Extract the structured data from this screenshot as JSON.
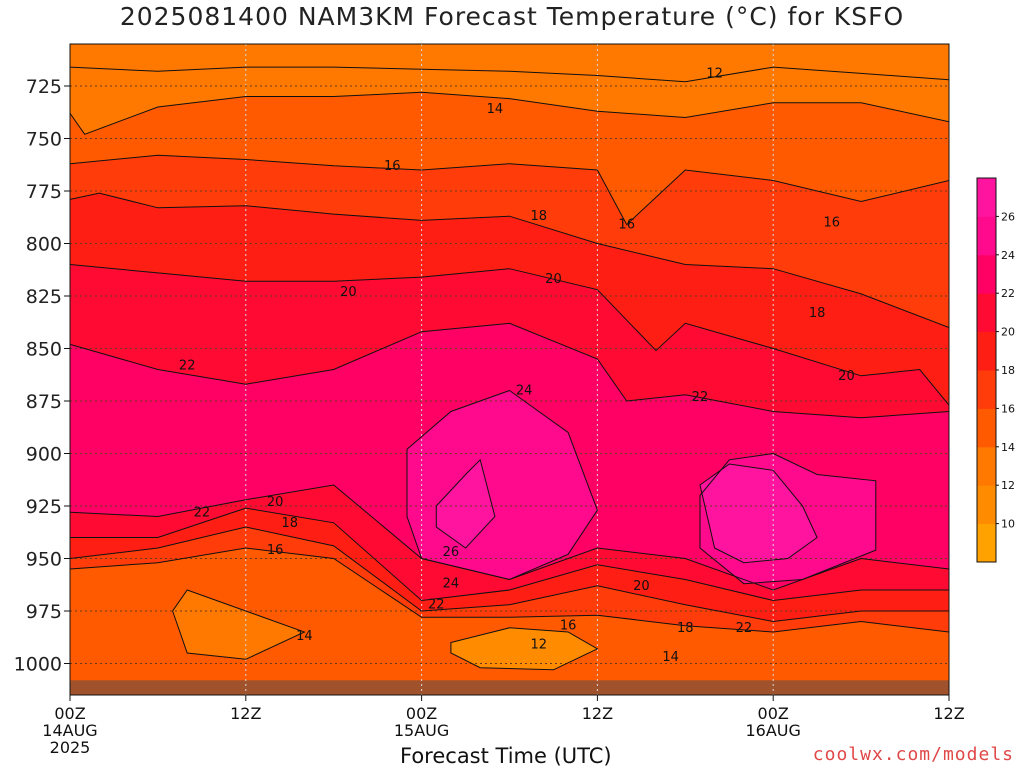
{
  "title": "2025081400 NAM3KM Forecast Temperature (°C) for KSFO",
  "footer": {
    "credit": "coolwx.com/models"
  },
  "chart_data": {
    "type": "heatmap",
    "title": "2025081400 NAM3KM Forecast Temperature (°C) for KSFO",
    "xlabel": "Forecast Time (UTC)",
    "ylabel": "",
    "xlim": [
      0,
      60
    ],
    "ylim": [
      1015,
      705
    ],
    "y_axis": {
      "reversed": true,
      "ticks": [
        725,
        750,
        775,
        800,
        825,
        850,
        875,
        900,
        925,
        950,
        975,
        1000
      ]
    },
    "x_axis": {
      "ticks": [
        {
          "hour": 0,
          "label": "00Z",
          "sub": [
            "14AUG",
            "2025"
          ]
        },
        {
          "hour": 12,
          "label": "12Z",
          "sub": []
        },
        {
          "hour": 24,
          "label": "00Z",
          "sub": [
            "15AUG"
          ]
        },
        {
          "hour": 36,
          "label": "12Z",
          "sub": []
        },
        {
          "hour": 48,
          "label": "00Z",
          "sub": [
            "16AUG"
          ]
        },
        {
          "hour": 60,
          "label": "12Z",
          "sub": []
        }
      ]
    },
    "grid": true,
    "colorbar": {
      "levels": [
        8,
        10,
        12,
        14,
        16,
        18,
        20,
        22,
        24,
        26,
        28
      ],
      "labels": [
        10,
        12,
        14,
        16,
        18,
        20,
        22,
        24,
        26
      ],
      "colors": [
        "#ffa200",
        "#ff8c00",
        "#ff7800",
        "#ff5a00",
        "#ff3c0a",
        "#ff1e14",
        "#ff0a32",
        "#ff0064",
        "#ff0a8c",
        "#ff14a0"
      ],
      "placement": "right"
    },
    "contour_levels": [
      12,
      14,
      16,
      18,
      20,
      22,
      24,
      26
    ],
    "series": [
      {
        "level": 12,
        "points": [
          [
            0,
            716
          ],
          [
            6,
            718
          ],
          [
            12,
            716
          ],
          [
            18,
            716
          ],
          [
            24,
            717
          ],
          [
            30,
            718
          ],
          [
            36,
            720
          ],
          [
            42,
            723
          ],
          [
            48,
            716
          ],
          [
            54,
            719
          ],
          [
            60,
            722
          ]
        ]
      },
      {
        "level": 14,
        "points": [
          [
            0,
            738
          ],
          [
            1,
            748
          ],
          [
            6,
            735
          ],
          [
            12,
            730
          ],
          [
            18,
            730
          ],
          [
            24,
            728
          ],
          [
            30,
            731
          ],
          [
            36,
            737
          ],
          [
            42,
            740
          ],
          [
            48,
            733
          ],
          [
            54,
            733
          ],
          [
            60,
            742
          ]
        ]
      },
      {
        "level": 16,
        "points": [
          [
            0,
            762
          ],
          [
            6,
            758
          ],
          [
            12,
            760
          ],
          [
            18,
            763
          ],
          [
            24,
            765
          ],
          [
            30,
            762
          ],
          [
            36,
            765
          ],
          [
            38,
            791
          ],
          [
            42,
            765
          ],
          [
            48,
            770
          ],
          [
            54,
            780
          ],
          [
            60,
            770
          ]
        ]
      },
      {
        "level": 18,
        "points": [
          [
            0,
            779
          ],
          [
            2,
            776
          ],
          [
            6,
            783
          ],
          [
            12,
            782
          ],
          [
            18,
            786
          ],
          [
            24,
            789
          ],
          [
            30,
            787
          ],
          [
            36,
            800
          ],
          [
            42,
            810
          ],
          [
            48,
            812
          ],
          [
            54,
            824
          ],
          [
            60,
            840
          ]
        ]
      },
      {
        "level": 20,
        "points": [
          [
            0,
            810
          ],
          [
            6,
            814
          ],
          [
            12,
            818
          ],
          [
            18,
            818
          ],
          [
            24,
            816
          ],
          [
            30,
            812
          ],
          [
            36,
            822
          ],
          [
            40,
            851
          ],
          [
            42,
            838
          ],
          [
            48,
            850
          ],
          [
            54,
            863
          ],
          [
            58,
            860
          ],
          [
            60,
            877
          ]
        ]
      },
      {
        "level": 22,
        "points": [
          [
            0,
            848
          ],
          [
            6,
            860
          ],
          [
            12,
            867
          ],
          [
            18,
            860
          ],
          [
            24,
            842
          ],
          [
            30,
            838
          ],
          [
            36,
            855
          ],
          [
            38,
            875
          ],
          [
            42,
            872
          ],
          [
            48,
            880
          ],
          [
            54,
            883
          ],
          [
            60,
            880
          ]
        ]
      },
      {
        "level": 24,
        "points": [
          [
            23,
            898
          ],
          [
            26,
            880
          ],
          [
            30,
            870
          ],
          [
            34,
            890
          ],
          [
            36,
            927
          ],
          [
            34,
            948
          ],
          [
            30,
            960
          ],
          [
            24,
            950
          ],
          [
            23,
            930
          ]
        ]
      },
      {
        "level": 26,
        "points": [
          [
            25,
            925
          ],
          [
            27,
            910
          ],
          [
            28,
            903
          ],
          [
            29,
            930
          ],
          [
            27,
            945
          ],
          [
            25,
            935
          ]
        ]
      },
      {
        "level": 24,
        "points": [
          [
            43,
            920
          ],
          [
            45,
            903
          ],
          [
            48,
            900
          ],
          [
            51,
            910
          ],
          [
            55,
            913
          ],
          [
            55,
            946
          ],
          [
            50,
            960
          ],
          [
            46,
            962
          ],
          [
            43,
            945
          ]
        ]
      },
      {
        "level": 26,
        "points": [
          [
            43,
            915
          ],
          [
            45,
            905
          ],
          [
            48,
            908
          ],
          [
            50,
            925
          ],
          [
            51,
            940
          ],
          [
            49,
            950
          ],
          [
            46,
            952
          ],
          [
            44,
            945
          ]
        ]
      },
      {
        "level": 22,
        "points": [
          [
            0,
            928
          ],
          [
            6,
            930
          ],
          [
            12,
            922
          ],
          [
            18,
            915
          ],
          [
            24,
            950
          ],
          [
            30,
            960
          ],
          [
            36,
            945
          ],
          [
            42,
            950
          ],
          [
            48,
            965
          ],
          [
            54,
            950
          ],
          [
            60,
            955
          ]
        ]
      },
      {
        "level": 20,
        "points": [
          [
            0,
            940
          ],
          [
            6,
            940
          ],
          [
            12,
            926
          ],
          [
            18,
            933
          ],
          [
            24,
            970
          ],
          [
            30,
            965
          ],
          [
            36,
            953
          ],
          [
            42,
            960
          ],
          [
            48,
            970
          ],
          [
            54,
            965
          ],
          [
            60,
            965
          ]
        ]
      },
      {
        "level": 18,
        "points": [
          [
            0,
            950
          ],
          [
            6,
            945
          ],
          [
            12,
            935
          ],
          [
            18,
            944
          ],
          [
            24,
            975
          ],
          [
            30,
            972
          ],
          [
            36,
            963
          ],
          [
            42,
            972
          ],
          [
            48,
            980
          ],
          [
            54,
            975
          ],
          [
            60,
            975
          ]
        ]
      },
      {
        "level": 16,
        "points": [
          [
            0,
            955
          ],
          [
            6,
            952
          ],
          [
            12,
            945
          ],
          [
            18,
            950
          ],
          [
            24,
            978
          ],
          [
            30,
            978
          ],
          [
            36,
            977
          ],
          [
            42,
            982
          ],
          [
            48,
            985
          ],
          [
            54,
            980
          ],
          [
            60,
            985
          ]
        ]
      },
      {
        "level": 14,
        "points": [
          [
            8,
            965
          ],
          [
            12,
            975
          ],
          [
            16,
            985
          ],
          [
            12,
            998
          ],
          [
            8,
            995
          ],
          [
            7,
            975
          ]
        ]
      },
      {
        "level": 12,
        "points": [
          [
            26,
            990
          ],
          [
            30,
            983
          ],
          [
            34,
            985
          ],
          [
            36,
            993
          ],
          [
            33,
            1003
          ],
          [
            28,
            1002
          ],
          [
            26,
            995
          ]
        ]
      }
    ],
    "contour_labels": [
      {
        "text": "12",
        "hour": 44,
        "p": 719
      },
      {
        "text": "14",
        "hour": 29,
        "p": 736
      },
      {
        "text": "16",
        "hour": 22,
        "p": 763
      },
      {
        "text": "18",
        "hour": 32,
        "p": 787
      },
      {
        "text": "16",
        "hour": 38,
        "p": 791
      },
      {
        "text": "16",
        "hour": 52,
        "p": 790
      },
      {
        "text": "20",
        "hour": 19,
        "p": 823
      },
      {
        "text": "20",
        "hour": 33,
        "p": 817
      },
      {
        "text": "18",
        "hour": 51,
        "p": 833
      },
      {
        "text": "22",
        "hour": 8,
        "p": 858
      },
      {
        "text": "20",
        "hour": 53,
        "p": 863
      },
      {
        "text": "24",
        "hour": 31,
        "p": 870
      },
      {
        "text": "22",
        "hour": 43,
        "p": 873
      },
      {
        "text": "26",
        "hour": 26,
        "p": 947
      },
      {
        "text": "24",
        "hour": 26,
        "p": 962
      },
      {
        "text": "22",
        "hour": 25,
        "p": 972
      },
      {
        "text": "22",
        "hour": 9,
        "p": 928
      },
      {
        "text": "20",
        "hour": 14,
        "p": 923
      },
      {
        "text": "18",
        "hour": 15,
        "p": 933
      },
      {
        "text": "16",
        "hour": 14,
        "p": 946
      },
      {
        "text": "20",
        "hour": 39,
        "p": 963
      },
      {
        "text": "18",
        "hour": 42,
        "p": 983
      },
      {
        "text": "22",
        "hour": 46,
        "p": 983
      },
      {
        "text": "16",
        "hour": 34,
        "p": 982
      },
      {
        "text": "14",
        "hour": 16,
        "p": 987
      },
      {
        "text": "12",
        "hour": 32,
        "p": 991
      },
      {
        "text": "14",
        "hour": 41,
        "p": 997
      }
    ]
  }
}
